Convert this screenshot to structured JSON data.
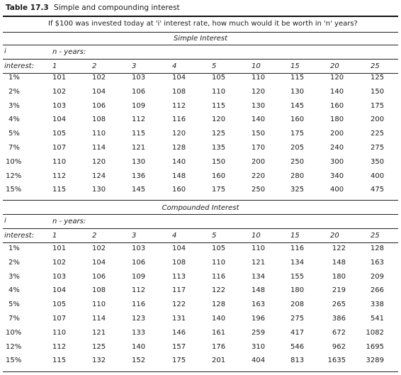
{
  "caption": {
    "label": "Table 17.3",
    "title": "Simple and compounding interest"
  },
  "question": "If $100 was invested today at 'i' interest rate, how much would it be worth in 'n' years?",
  "row_header_i": "i",
  "row_header_interest": "interest:",
  "sections": [
    {
      "title": "Simple Interest",
      "years_label": "n - years:",
      "years": [
        "1",
        "2",
        "3",
        "4",
        "5",
        "10",
        "15",
        "20",
        "25"
      ],
      "rows": [
        {
          "rate": "1%",
          "values": [
            "101",
            "102",
            "103",
            "104",
            "105",
            "110",
            "115",
            "120",
            "125"
          ]
        },
        {
          "rate": "2%",
          "values": [
            "102",
            "104",
            "106",
            "108",
            "110",
            "120",
            "130",
            "140",
            "150"
          ]
        },
        {
          "rate": "3%",
          "values": [
            "103",
            "106",
            "109",
            "112",
            "115",
            "130",
            "145",
            "160",
            "175"
          ]
        },
        {
          "rate": "4%",
          "values": [
            "104",
            "108",
            "112",
            "116",
            "120",
            "140",
            "160",
            "180",
            "200"
          ]
        },
        {
          "rate": "5%",
          "values": [
            "105",
            "110",
            "115",
            "120",
            "125",
            "150",
            "175",
            "200",
            "225"
          ]
        },
        {
          "rate": "7%",
          "values": [
            "107",
            "114",
            "121",
            "128",
            "135",
            "170",
            "205",
            "240",
            "275"
          ]
        },
        {
          "rate": "10%",
          "values": [
            "110",
            "120",
            "130",
            "140",
            "150",
            "200",
            "250",
            "300",
            "350"
          ]
        },
        {
          "rate": "12%",
          "values": [
            "112",
            "124",
            "136",
            "148",
            "160",
            "220",
            "280",
            "340",
            "400"
          ]
        },
        {
          "rate": "15%",
          "values": [
            "115",
            "130",
            "145",
            "160",
            "175",
            "250",
            "325",
            "400",
            "475"
          ]
        }
      ]
    },
    {
      "title": "Compounded Interest",
      "years_label": "n - years:",
      "years": [
        "1",
        "2",
        "3",
        "4",
        "5",
        "10",
        "15",
        "20",
        "25"
      ],
      "rows": [
        {
          "rate": "1%",
          "values": [
            "101",
            "102",
            "103",
            "104",
            "105",
            "110",
            "116",
            "122",
            "128"
          ]
        },
        {
          "rate": "2%",
          "values": [
            "102",
            "104",
            "106",
            "108",
            "110",
            "121",
            "134",
            "148",
            "163"
          ]
        },
        {
          "rate": "3%",
          "values": [
            "103",
            "106",
            "109",
            "113",
            "116",
            "134",
            "155",
            "180",
            "209"
          ]
        },
        {
          "rate": "4%",
          "values": [
            "104",
            "108",
            "112",
            "117",
            "122",
            "148",
            "180",
            "219",
            "266"
          ]
        },
        {
          "rate": "5%",
          "values": [
            "105",
            "110",
            "116",
            "122",
            "128",
            "163",
            "208",
            "265",
            "338"
          ]
        },
        {
          "rate": "7%",
          "values": [
            "107",
            "114",
            "123",
            "131",
            "140",
            "196",
            "275",
            "386",
            "541"
          ]
        },
        {
          "rate": "10%",
          "values": [
            "110",
            "121",
            "133",
            "146",
            "161",
            "259",
            "417",
            "672",
            "1082"
          ]
        },
        {
          "rate": "12%",
          "values": [
            "112",
            "125",
            "140",
            "157",
            "176",
            "310",
            "546",
            "962",
            "1695"
          ]
        },
        {
          "rate": "15%",
          "values": [
            "115",
            "132",
            "152",
            "175",
            "201",
            "404",
            "813",
            "1635",
            "3289"
          ]
        }
      ]
    }
  ]
}
